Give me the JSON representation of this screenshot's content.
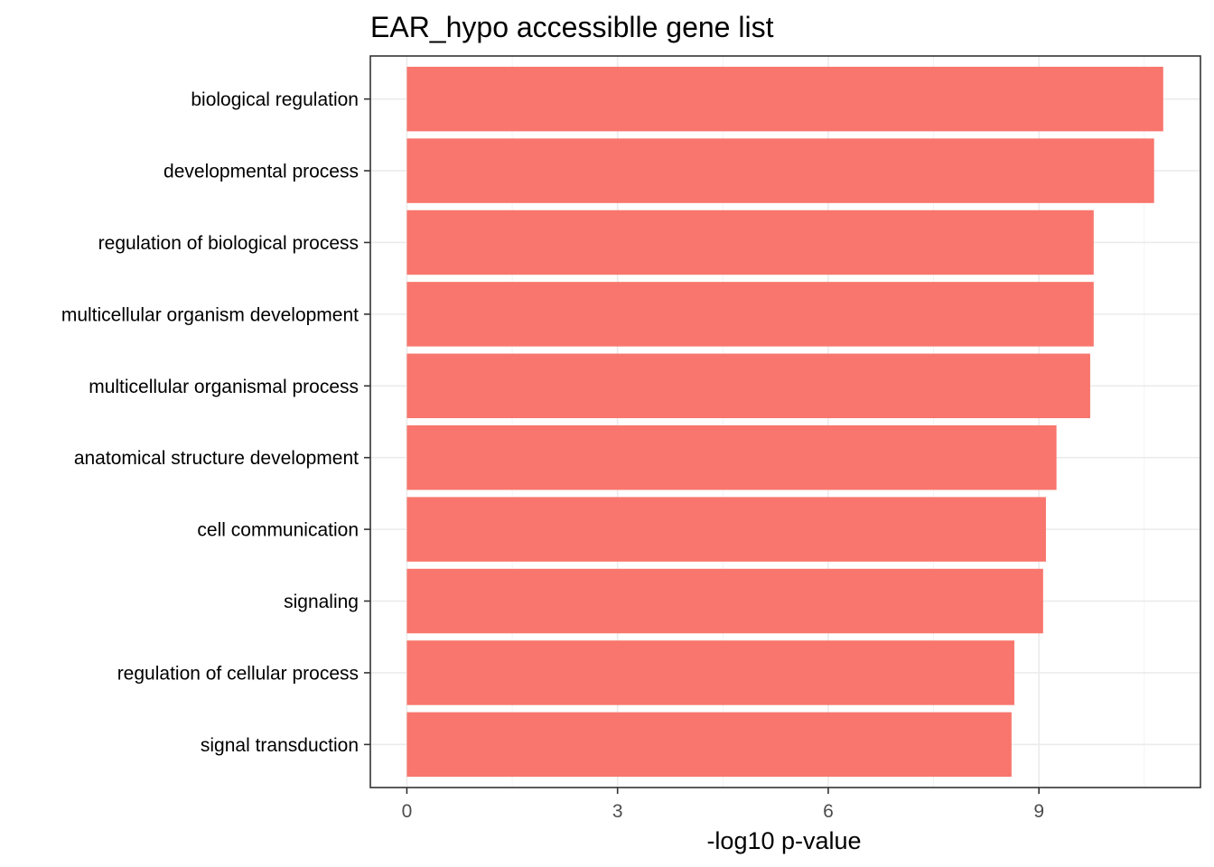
{
  "chart_data": {
    "type": "bar",
    "orientation": "horizontal",
    "title": "EAR_hypo accessiblle gene list",
    "xlabel": "-log10 p-value",
    "ylabel": "",
    "categories": [
      "biological regulation",
      "developmental process",
      "regulation of biological process",
      "multicellular organism development",
      "multicellular organismal process",
      "anatomical structure development",
      "cell communication",
      "signaling",
      "regulation of cellular process",
      "signal transduction"
    ],
    "values": [
      10.77,
      10.64,
      9.78,
      9.78,
      9.73,
      9.25,
      9.1,
      9.06,
      8.65,
      8.61
    ],
    "xlim": [
      -0.52,
      11.3
    ],
    "xticks": [
      0,
      3,
      6,
      9
    ],
    "grid": true,
    "bar_color": "#F8766D"
  }
}
